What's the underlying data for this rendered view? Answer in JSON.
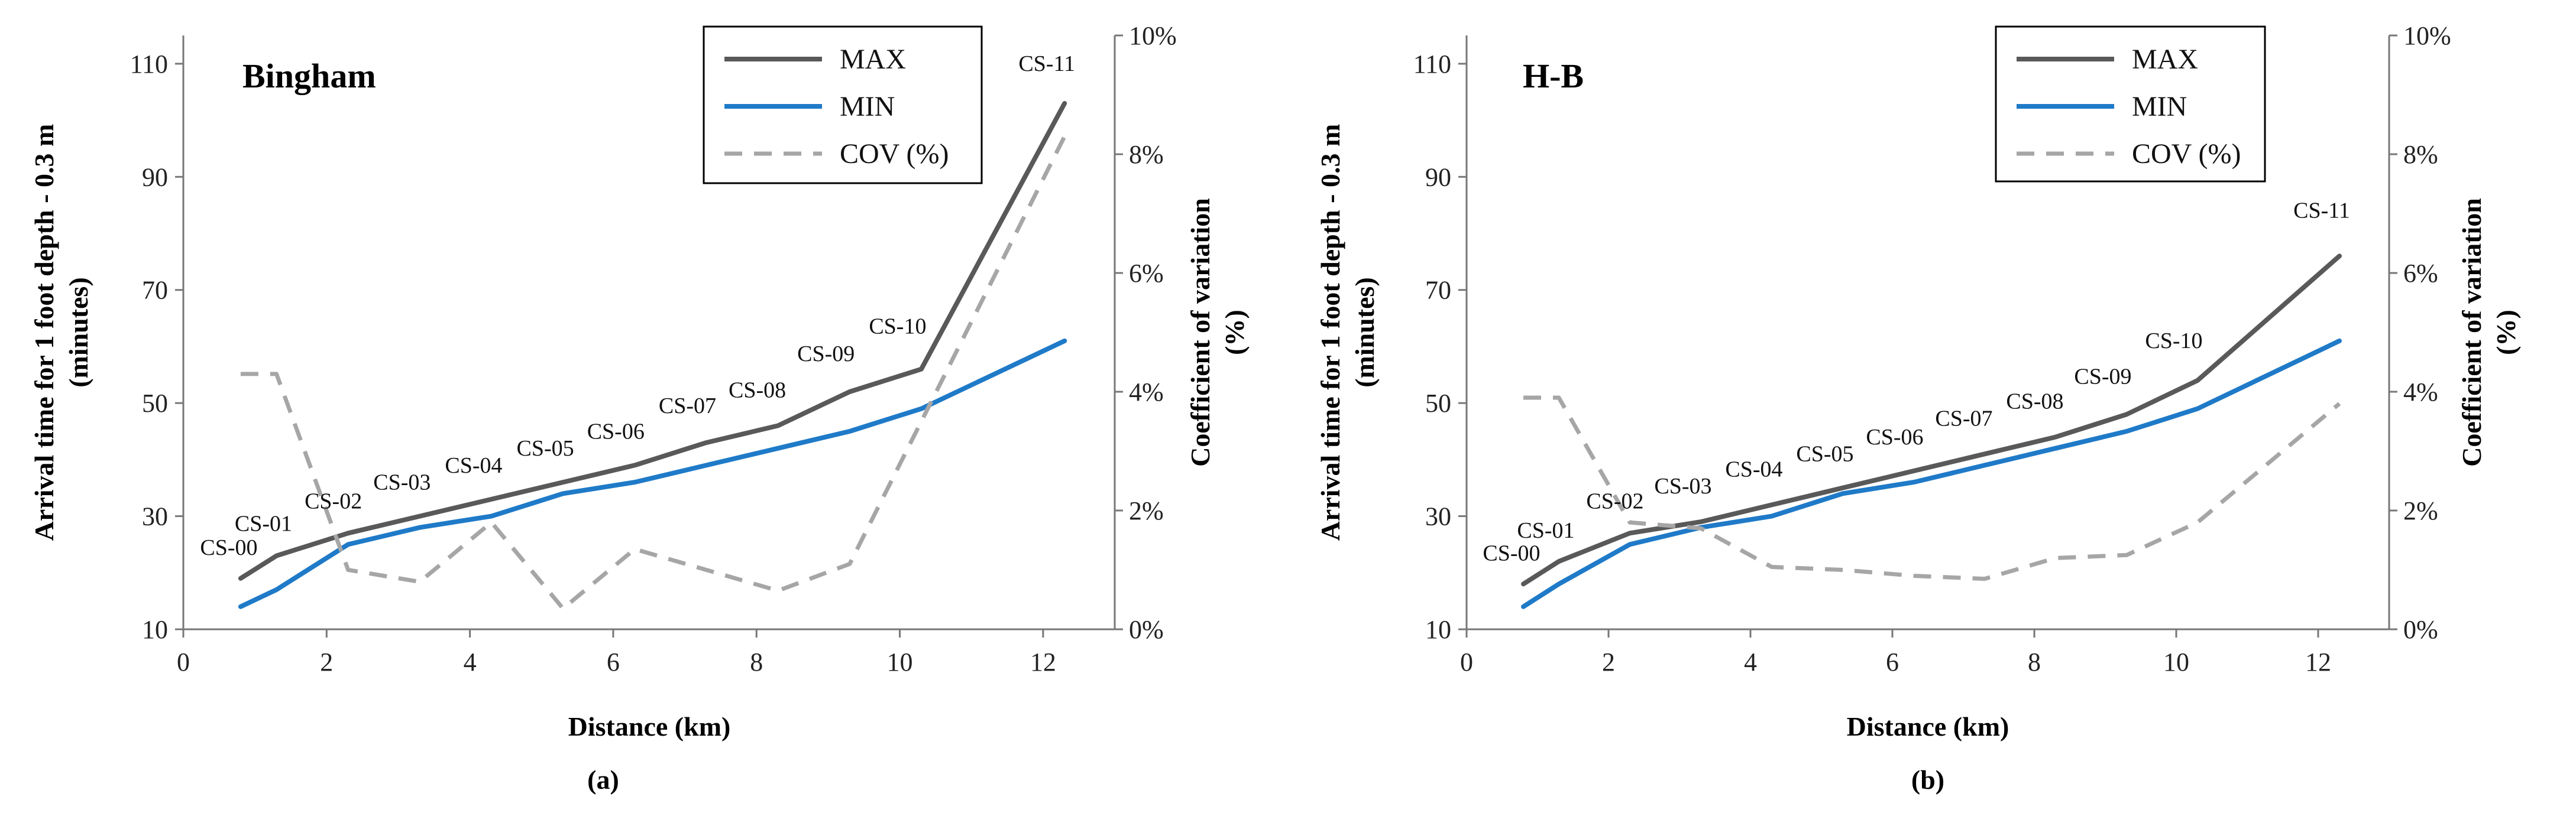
{
  "chart_data": [
    {
      "type": "line",
      "panel_label": "(a)",
      "title": "Bingham",
      "xlabel": "Distance (km)",
      "ylabel": "Arrival time for 1 foot depth - 0.3 m (minutes)",
      "ylabel_lines": [
        "Arrival time for 1 foot depth - 0.3 m",
        "(minutes)"
      ],
      "y2label": "Coefficient of variation (%)",
      "y2label_lines": [
        "Coefficient of variation",
        "(%)"
      ],
      "xlim": [
        0,
        13
      ],
      "xticks": [
        "0",
        "2",
        "4",
        "6",
        "8",
        "10",
        "12"
      ],
      "ylim": [
        10,
        115
      ],
      "yticks": [
        "10",
        "30",
        "50",
        "70",
        "90",
        "110"
      ],
      "y2lim": [
        0,
        10
      ],
      "y2ticks": [
        "0%",
        "2%",
        "4%",
        "6%",
        "8%",
        "10%"
      ],
      "legend_position": "top-right",
      "series": [
        {
          "name": "MAX",
          "axis": "left",
          "style": "solid",
          "color": "#595959",
          "x": [
            0.8,
            1.3,
            2.3,
            3.3,
            4.3,
            5.3,
            6.3,
            7.3,
            8.3,
            9.3,
            10.3,
            12.3
          ],
          "values": [
            19,
            23,
            27,
            30,
            33,
            36,
            39,
            43,
            46,
            52,
            56,
            103
          ]
        },
        {
          "name": "MIN",
          "axis": "left",
          "style": "solid",
          "color": "#1f7ac8",
          "x": [
            0.8,
            1.3,
            2.3,
            3.3,
            4.3,
            5.3,
            6.3,
            7.3,
            8.3,
            9.3,
            10.3,
            12.3
          ],
          "values": [
            14,
            17,
            25,
            28,
            30,
            34,
            36,
            39,
            42,
            45,
            49,
            61
          ]
        },
        {
          "name": "COV (%)",
          "axis": "right",
          "style": "dashed",
          "color": "#a6a6a6",
          "x": [
            0.8,
            1.3,
            2.3,
            3.3,
            4.3,
            5.3,
            6.3,
            7.3,
            8.3,
            9.3,
            10.3,
            12.3
          ],
          "values": [
            4.3,
            4.3,
            1.0,
            0.8,
            1.8,
            0.35,
            1.35,
            1.0,
            0.65,
            1.1,
            3.5,
            8.3
          ]
        }
      ],
      "point_labels": [
        "CS-00",
        "CS-01",
        "CS-02",
        "CS-03",
        "CS-04",
        "CS-05",
        "CS-06",
        "CS-07",
        "CS-08",
        "CS-09",
        "CS-10",
        "CS-11"
      ]
    },
    {
      "type": "line",
      "panel_label": "(b)",
      "title": "H-B",
      "xlabel": "Distance (km)",
      "ylabel": "Arrival time for 1 foot depth - 0.3 m (minutes)",
      "ylabel_lines": [
        "Arrival time for 1 foot depth - 0.3 m",
        "(minutes)"
      ],
      "y2label": "Coefficient of variation (%)",
      "y2label_lines": [
        "Coefficient of variation",
        "(%)"
      ],
      "xlim": [
        0,
        13
      ],
      "xticks": [
        "0",
        "2",
        "4",
        "6",
        "8",
        "10",
        "12"
      ],
      "ylim": [
        10,
        115
      ],
      "yticks": [
        "10",
        "30",
        "50",
        "70",
        "90",
        "110"
      ],
      "y2lim": [
        0,
        10
      ],
      "y2ticks": [
        "0%",
        "2%",
        "4%",
        "6%",
        "8%",
        "10%"
      ],
      "legend_position": "top-right",
      "series": [
        {
          "name": "MAX",
          "axis": "left",
          "style": "solid",
          "color": "#595959",
          "x": [
            0.8,
            1.3,
            2.3,
            3.3,
            4.3,
            5.3,
            6.3,
            7.3,
            8.3,
            9.3,
            10.3,
            12.3
          ],
          "values": [
            18,
            22,
            27,
            29,
            32,
            35,
            38,
            41,
            44,
            48,
            54,
            76
          ]
        },
        {
          "name": "MIN",
          "axis": "left",
          "style": "solid",
          "color": "#1f7ac8",
          "x": [
            0.8,
            1.3,
            2.3,
            3.3,
            4.3,
            5.3,
            6.3,
            7.3,
            8.3,
            9.3,
            10.3,
            12.3
          ],
          "values": [
            14,
            18,
            25,
            28,
            30,
            34,
            36,
            39,
            42,
            45,
            49,
            61
          ]
        },
        {
          "name": "COV (%)",
          "axis": "right",
          "style": "dashed",
          "color": "#a6a6a6",
          "x": [
            0.8,
            1.3,
            2.3,
            3.3,
            4.3,
            5.3,
            6.3,
            7.3,
            8.3,
            9.3,
            10.3,
            12.3
          ],
          "values": [
            3.9,
            3.9,
            1.8,
            1.7,
            1.05,
            1.0,
            0.9,
            0.85,
            1.2,
            1.25,
            1.8,
            3.8
          ]
        }
      ],
      "point_labels": [
        "CS-00",
        "CS-01",
        "CS-02",
        "CS-03",
        "CS-04",
        "CS-05",
        "CS-06",
        "CS-07",
        "CS-08",
        "CS-09",
        "CS-10",
        "CS-11"
      ]
    }
  ]
}
